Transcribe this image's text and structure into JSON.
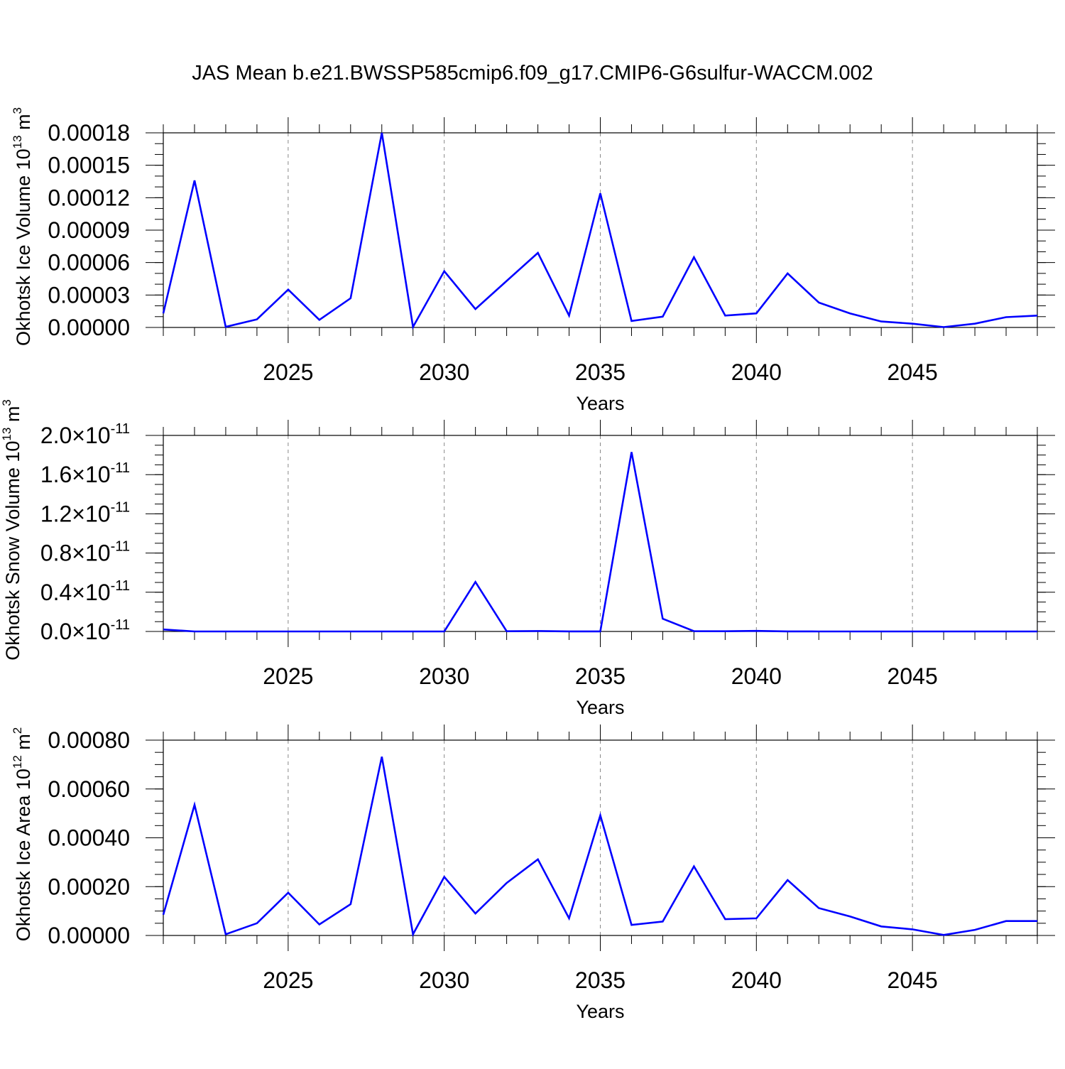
{
  "title": "JAS Mean b.e21.BWSSP585cmip6.f09_g17.CMIP6-G6sulfur-WACCM.002",
  "line_color": "#0000ff",
  "chart_data": [
    {
      "type": "line",
      "xlabel": "Years",
      "ylabel": {
        "text": "Okhotsk Ice Volume 10",
        "exp": "13",
        "unit": " m",
        "unit_exp": "3"
      },
      "xlim": [
        2021,
        2049
      ],
      "ylim": [
        0,
        0.00018
      ],
      "x_ticks": [
        2025,
        2030,
        2035,
        2040,
        2045
      ],
      "y_ticks": [
        {
          "v": 0.00018,
          "label": "0.00018"
        },
        {
          "v": 0.00015,
          "label": "0.00015"
        },
        {
          "v": 0.00012,
          "label": "0.00012"
        },
        {
          "v": 9e-05,
          "label": "0.00009"
        },
        {
          "v": 6e-05,
          "label": "0.00006"
        },
        {
          "v": 3e-05,
          "label": "0.00003"
        },
        {
          "v": 0.0,
          "label": "0.00000"
        }
      ],
      "x": [
        2021,
        2022,
        2023,
        2024,
        2025,
        2026,
        2027,
        2028,
        2029,
        2030,
        2031,
        2032,
        2033,
        2034,
        2035,
        2036,
        2037,
        2038,
        2039,
        2040,
        2041,
        2042,
        2043,
        2044,
        2045,
        2046,
        2047,
        2048,
        2049
      ],
      "series": [
        {
          "values": [
            1.3e-05,
            0.000136,
            5e-07,
            7.5e-06,
            3.5e-05,
            7e-06,
            2.7e-05,
            0.00018,
            5e-07,
            5.2e-05,
            1.7e-05,
            4.3e-05,
            6.9e-05,
            1.1e-05,
            0.000124,
            6e-06,
            1e-05,
            6.5e-05,
            1.1e-05,
            1.3e-05,
            5e-05,
            2.3e-05,
            1.3e-05,
            5.5e-06,
            3.5e-06,
            3e-07,
            3.5e-06,
            9.5e-06,
            1.1e-05
          ]
        }
      ]
    },
    {
      "type": "line",
      "xlabel": "Years",
      "ylabel": {
        "text": "Okhotsk Snow Volume 10",
        "exp": "13",
        "unit": " m",
        "unit_exp": "3"
      },
      "xlim": [
        2021,
        2049
      ],
      "ylim": [
        0,
        2e-11
      ],
      "x_ticks": [
        2025,
        2030,
        2035,
        2040,
        2045
      ],
      "y_ticks": [
        {
          "v": 2e-11,
          "label": "2.0",
          "times": "×10",
          "exp": "-11"
        },
        {
          "v": 1.6e-11,
          "label": "1.6",
          "times": "×10",
          "exp": "-11"
        },
        {
          "v": 1.2e-11,
          "label": "1.2",
          "times": "×10",
          "exp": "-11"
        },
        {
          "v": 8e-12,
          "label": "0.8",
          "times": "×10",
          "exp": "-11"
        },
        {
          "v": 4e-12,
          "label": "0.4",
          "times": "×10",
          "exp": "-11"
        },
        {
          "v": 0.0,
          "label": "0.0",
          "times": "×10",
          "exp": "-11"
        }
      ],
      "x": [
        2021,
        2022,
        2023,
        2024,
        2025,
        2026,
        2027,
        2028,
        2029,
        2030,
        2031,
        2032,
        2033,
        2034,
        2035,
        2036,
        2037,
        2038,
        2039,
        2040,
        2041,
        2042,
        2043,
        2044,
        2045,
        2046,
        2047,
        2048,
        2049
      ],
      "series": [
        {
          "values": [
            2e-13,
            0,
            0,
            0,
            0,
            0,
            0,
            0,
            0,
            0,
            5.05e-12,
            2e-14,
            4e-14,
            1e-14,
            1e-14,
            1.83e-11,
            1.3e-12,
            3e-14,
            2e-14,
            6e-14,
            1e-14,
            0,
            0,
            0,
            0,
            0,
            0,
            0,
            0
          ]
        }
      ]
    },
    {
      "type": "line",
      "xlabel": "Years",
      "ylabel": {
        "text": "Okhotsk Ice Area 10",
        "exp": "12",
        "unit": " m",
        "unit_exp": "2"
      },
      "xlim": [
        2021,
        2049
      ],
      "ylim": [
        0,
        0.0008
      ],
      "x_ticks": [
        2025,
        2030,
        2035,
        2040,
        2045
      ],
      "y_ticks": [
        {
          "v": 0.0008,
          "label": "0.00080"
        },
        {
          "v": 0.0006,
          "label": "0.00060"
        },
        {
          "v": 0.0004,
          "label": "0.00040"
        },
        {
          "v": 0.0002,
          "label": "0.00020"
        },
        {
          "v": 0.0,
          "label": "0.00000"
        }
      ],
      "x": [
        2021,
        2022,
        2023,
        2024,
        2025,
        2026,
        2027,
        2028,
        2029,
        2030,
        2031,
        2032,
        2033,
        2034,
        2035,
        2036,
        2037,
        2038,
        2039,
        2040,
        2041,
        2042,
        2043,
        2044,
        2045,
        2046,
        2047,
        2048,
        2049
      ],
      "series": [
        {
          "values": [
            8.5e-05,
            0.000535,
            5e-06,
            5e-05,
            0.000175,
            4.5e-05,
            0.000128,
            0.000732,
            5e-06,
            0.00024,
            9e-05,
            0.000215,
            0.000312,
            7e-05,
            0.000492,
            4.3e-05,
            5.7e-05,
            0.000283,
            6.7e-05,
            7e-05,
            0.000227,
            0.000112,
            7.8e-05,
            3.7e-05,
            2.5e-05,
            2e-06,
            2.3e-05,
            5.9e-05,
            5.9e-05
          ]
        }
      ]
    }
  ]
}
